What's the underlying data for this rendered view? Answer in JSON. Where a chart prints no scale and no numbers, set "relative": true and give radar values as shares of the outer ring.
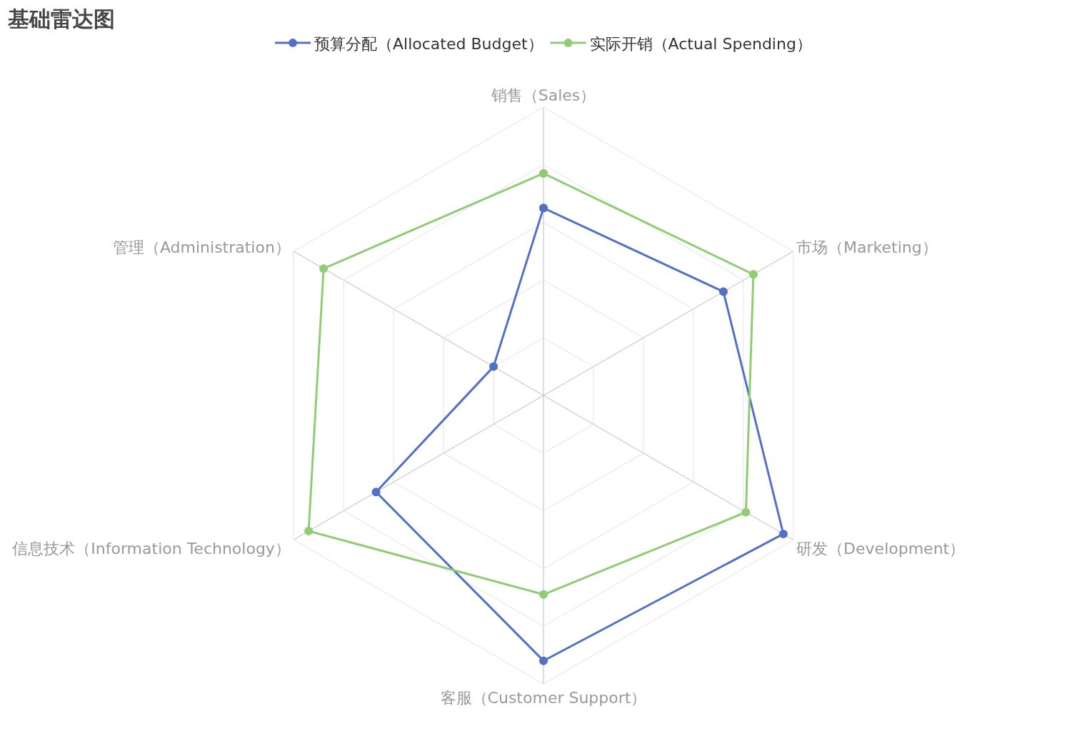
{
  "chart_data": {
    "type": "radar",
    "title": "基础雷达图",
    "categories": [
      "销售（Sales）",
      "市场（Marketing）",
      "研发（Development）",
      "客服（Customer Support）",
      "信息技术（Information Technology）",
      "管理（Administration）"
    ],
    "relative": true,
    "series": [
      {
        "name": "预算分配（Allocated Budget）",
        "color": "#5470c6",
        "values": [
          0.65,
          0.72,
          0.96,
          0.92,
          0.67,
          0.2
        ]
      },
      {
        "name": "实际开销（Actual Spending）",
        "color": "#91cc75",
        "values": [
          0.77,
          0.84,
          0.81,
          0.69,
          0.94,
          0.88
        ]
      }
    ],
    "grid": true,
    "legend": "top",
    "marker": "circle",
    "line_style": "solid"
  }
}
